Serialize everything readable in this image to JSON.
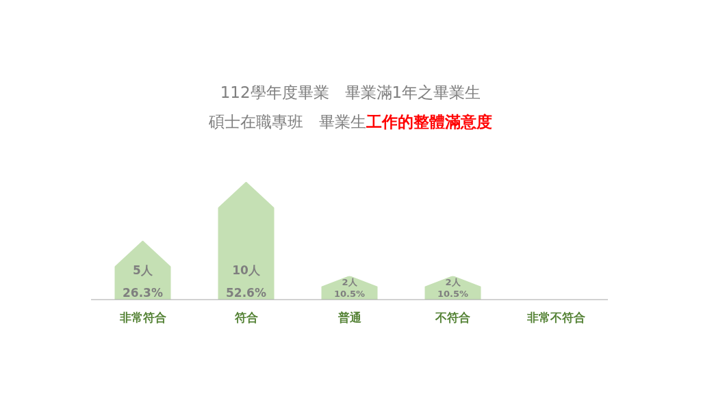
{
  "chart_data": {
    "type": "bar",
    "title": "112學年度畢業　畢業滿1年之畢業生",
    "subtitle": "碩士在職專班　畢業生",
    "annotations": [
      "工作的整體滿意度",
      "26.3%",
      "52.6%",
      "10.5%",
      "10.5%"
    ],
    "categories": [
      "非常符合",
      "符合",
      "普通",
      "不符合",
      "非常不符合"
    ],
    "values": [
      5,
      10,
      2,
      2,
      0
    ],
    "value_labels": [
      "5人",
      "10人",
      "2人",
      "2人",
      null
    ],
    "color": "#c5e0b4"
  }
}
